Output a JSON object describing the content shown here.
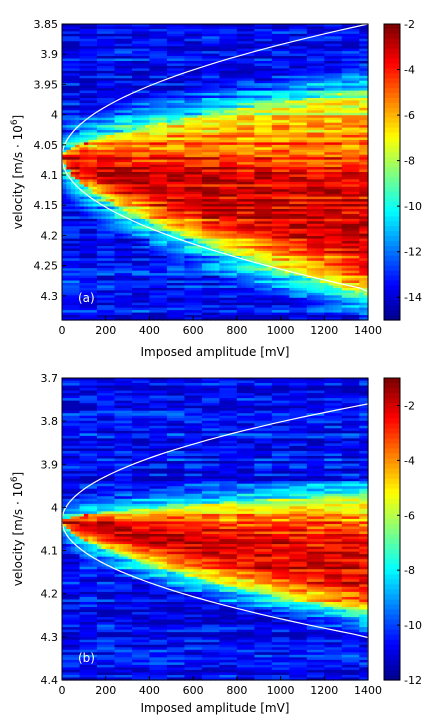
{
  "chart_data": [
    {
      "type": "heatmap",
      "panel_label": "(a)",
      "xlabel": "Imposed amplitude [mV]",
      "ylabel": "velocity [m/s · 10",
      "ylabel_sup": "6",
      "ylabel_close": "]",
      "xlim": [
        0,
        1400
      ],
      "ylim": [
        3.85,
        4.34
      ],
      "x_ticks": [
        0,
        200,
        400,
        600,
        800,
        1000,
        1200,
        1400
      ],
      "y_ticks": [
        3.85,
        3.9,
        3.95,
        4,
        4.05,
        4.1,
        4.15,
        4.2,
        4.25,
        4.3
      ],
      "x_tick_labels": [
        "0",
        "200",
        "400",
        "600",
        "800",
        "1000",
        "1200",
        "1400"
      ],
      "y_tick_labels": [
        "3.85",
        "3.9",
        "3.95",
        "4",
        "4.05",
        "4.1",
        "4.15",
        "4.2",
        "4.25",
        "4.3"
      ],
      "colorbar": {
        "range": [
          -15,
          -2
        ],
        "ticks": [
          -2,
          -4,
          -6,
          -8,
          -10,
          -12,
          -14
        ],
        "tick_labels": [
          "-2",
          "-4",
          "-6",
          "-8",
          "-10",
          "-12",
          "-14"
        ],
        "colormap": "jet"
      },
      "overlay_curve": {
        "type": "parabola",
        "color": "#ffffff",
        "vertex": {
          "x": 0,
          "y": 4.07
        },
        "points": [
          {
            "x": 1400,
            "y": 3.85
          },
          {
            "x": 1400,
            "y": 4.31
          }
        ]
      },
      "ridge": {
        "start": {
          "x": 0,
          "y": 4.07
        },
        "center_at_1400": 4.2,
        "lower_bound_at_1400": 4.3,
        "upper_bound_at_1400": 3.96
      }
    },
    {
      "type": "heatmap",
      "panel_label": "(b)",
      "xlabel": "Imposed amplitude [mV]",
      "ylabel": "velocity [m/s · 10",
      "ylabel_sup": "6",
      "ylabel_close": "]",
      "xlim": [
        0,
        1400
      ],
      "ylim": [
        3.7,
        4.4
      ],
      "x_ticks": [
        0,
        200,
        400,
        600,
        800,
        1000,
        1200,
        1400
      ],
      "y_ticks": [
        3.7,
        3.8,
        3.9,
        4,
        4.1,
        4.2,
        4.3,
        4.4
      ],
      "x_tick_labels": [
        "0",
        "200",
        "400",
        "600",
        "800",
        "1000",
        "1200",
        "1400"
      ],
      "y_tick_labels": [
        "3.7",
        "3.8",
        "3.9",
        "4",
        "4.1",
        "4.2",
        "4.3",
        "4.4"
      ],
      "colorbar": {
        "range": [
          -12,
          -1
        ],
        "ticks": [
          -2,
          -4,
          -6,
          -8,
          -10,
          -12
        ],
        "tick_labels": [
          "-2",
          "-4",
          "-6",
          "-8",
          "-10",
          "-12"
        ],
        "colormap": "jet"
      },
      "overlay_curve": {
        "type": "parabola",
        "color": "#ffffff",
        "vertex": {
          "x": 0,
          "y": 4.03
        },
        "points": [
          {
            "x": 1400,
            "y": 3.76
          },
          {
            "x": 1400,
            "y": 4.37
          }
        ]
      },
      "ridge": {
        "start": {
          "x": 0,
          "y": 4.03
        },
        "center_at_1400": 4.15,
        "lower_bound_at_1400": 4.25,
        "upper_bound_at_1400": 3.97
      }
    }
  ]
}
